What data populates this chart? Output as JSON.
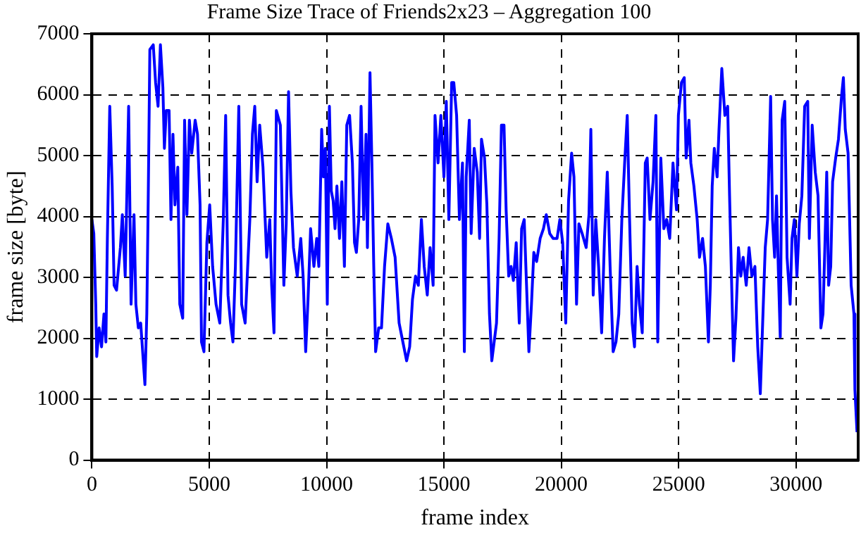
{
  "chart_data": {
    "type": "line",
    "title": "Frame Size Trace of Friends2x23 – Aggregation 100",
    "xlabel": "frame index",
    "ylabel": "frame size [byte]",
    "xlim": [
      0,
      32650
    ],
    "ylim": [
      0,
      7000
    ],
    "xticks": [
      0,
      5000,
      10000,
      15000,
      20000,
      25000,
      30000
    ],
    "yticks": [
      0,
      1000,
      2000,
      3000,
      4000,
      5000,
      6000,
      7000
    ],
    "grid": true,
    "legend": false,
    "marker": "none",
    "line_style": "solid",
    "series": [
      {
        "color": "#0000ff",
        "x": [
          0,
          82,
          165,
          206,
          309,
          412,
          515,
          597,
          660,
          762,
          865,
          947,
          1050,
          1215,
          1298,
          1420,
          1566,
          1670,
          1795,
          1875,
          1980,
          2080,
          2260,
          2340,
          2400,
          2470,
          2615,
          2715,
          2820,
          2920,
          3025,
          3090,
          3170,
          3290,
          3370,
          3455,
          3540,
          3660,
          3745,
          3870,
          3950,
          4050,
          4155,
          4255,
          4400,
          4500,
          4610,
          4670,
          4775,
          4900,
          5020,
          5145,
          5290,
          5450,
          5600,
          5700,
          5800,
          5910,
          6010,
          6115,
          6260,
          6380,
          6530,
          6630,
          6730,
          6840,
          6940,
          7040,
          7150,
          7290,
          7450,
          7580,
          7660,
          7760,
          7860,
          8030,
          8180,
          8280,
          8380,
          8480,
          8590,
          8750,
          8900,
          9000,
          9110,
          9210,
          9320,
          9460,
          9580,
          9670,
          9790,
          9870,
          9950,
          10030,
          10120,
          10200,
          10280,
          10360,
          10440,
          10550,
          10650,
          10760,
          10860,
          10980,
          11100,
          11190,
          11270,
          11370,
          11470,
          11580,
          11680,
          11740,
          11850,
          11930,
          12010,
          12090,
          12220,
          12340,
          12470,
          12610,
          12760,
          12920,
          13090,
          13250,
          13410,
          13540,
          13660,
          13790,
          13910,
          14040,
          14160,
          14290,
          14410,
          14540,
          14620,
          14750,
          14870,
          15000,
          15100,
          15210,
          15330,
          15420,
          15540,
          15660,
          15790,
          15870,
          15950,
          16080,
          16160,
          16290,
          16420,
          16520,
          16600,
          16730,
          16830,
          16940,
          17040,
          17140,
          17240,
          17350,
          17450,
          17560,
          17650,
          17760,
          17860,
          17960,
          18080,
          18210,
          18310,
          18420,
          18520,
          18620,
          18730,
          18830,
          18950,
          19100,
          19240,
          19360,
          19510,
          19650,
          19820,
          19940,
          20060,
          20190,
          20310,
          20440,
          20540,
          20650,
          20750,
          20890,
          21060,
          21180,
          21260,
          21360,
          21470,
          21590,
          21720,
          21840,
          21960,
          22080,
          22210,
          22330,
          22450,
          22580,
          22700,
          22810,
          22910,
          23020,
          23120,
          23230,
          23330,
          23450,
          23580,
          23660,
          23780,
          23910,
          24030,
          24110,
          24240,
          24370,
          24490,
          24620,
          24760,
          24910,
          24990,
          25120,
          25240,
          25320,
          25440,
          25520,
          25650,
          25790,
          25890,
          26020,
          26140,
          26270,
          26350,
          26430,
          26520,
          26640,
          26720,
          26840,
          26970,
          27090,
          27170,
          27260,
          27340,
          27440,
          27550,
          27650,
          27750,
          27880,
          28000,
          28120,
          28250,
          28370,
          28480,
          28580,
          28690,
          28790,
          28920,
          29000,
          29090,
          29170,
          29250,
          29330,
          29410,
          29520,
          29620,
          29750,
          29830,
          29930,
          30040,
          30140,
          30250,
          30370,
          30500,
          30570,
          30690,
          30820,
          30940,
          31060,
          31150,
          31230,
          31310,
          31390,
          31480,
          31560,
          31690,
          31810,
          31940,
          32020,
          32100,
          32220,
          32350,
          32470,
          32510,
          32600
        ],
        "values": [
          3950,
          3720,
          2560,
          1700,
          2170,
          1860,
          2400,
          1940,
          3640,
          5810,
          4500,
          2870,
          2790,
          3490,
          4030,
          3020,
          5810,
          2560,
          4030,
          2560,
          2170,
          2250,
          1240,
          2400,
          4260,
          6740,
          6820,
          6200,
          5810,
          6820,
          6120,
          5120,
          5740,
          5740,
          3950,
          5350,
          4190,
          4810,
          2560,
          2330,
          5580,
          4030,
          5580,
          5040,
          5580,
          5350,
          4190,
          1940,
          1780,
          3570,
          4190,
          3180,
          2560,
          2250,
          3950,
          5660,
          2710,
          2250,
          1940,
          3180,
          5810,
          2560,
          2250,
          3100,
          3950,
          5350,
          5810,
          4570,
          5500,
          4810,
          3330,
          3950,
          2870,
          2090,
          5740,
          5500,
          2870,
          3880,
          6050,
          4420,
          3490,
          3020,
          3640,
          3020,
          1780,
          2640,
          3800,
          3180,
          3640,
          3180,
          5430,
          4650,
          5120,
          2560,
          5810,
          4420,
          4260,
          3800,
          4500,
          3640,
          4570,
          3180,
          5500,
          5660,
          4880,
          3570,
          3410,
          3950,
          5810,
          3950,
          5350,
          3490,
          6360,
          4880,
          3180,
          1780,
          2170,
          2170,
          3180,
          3880,
          3640,
          3330,
          2250,
          1940,
          1630,
          1860,
          2640,
          3020,
          2870,
          3950,
          3180,
          2710,
          3490,
          2870,
          5660,
          4880,
          5660,
          4650,
          5890,
          3950,
          6200,
          6200,
          5660,
          3950,
          4880,
          1780,
          4650,
          5580,
          3720,
          5120,
          4730,
          3640,
          5270,
          4960,
          4190,
          2400,
          1630,
          1940,
          2250,
          3640,
          5500,
          5500,
          4110,
          3020,
          3180,
          2950,
          3570,
          2250,
          3800,
          3950,
          2870,
          1780,
          2560,
          3410,
          3260,
          3640,
          3800,
          4030,
          3720,
          3640,
          3640,
          3950,
          3570,
          2250,
          4260,
          5040,
          4650,
          2560,
          3880,
          3720,
          3490,
          4030,
          5430,
          2710,
          3950,
          3180,
          2090,
          3640,
          4730,
          3180,
          1780,
          1940,
          2400,
          3950,
          4880,
          5660,
          3950,
          2250,
          1860,
          3180,
          2560,
          2090,
          4880,
          4960,
          3950,
          4570,
          5660,
          1940,
          4960,
          3800,
          3950,
          3640,
          4880,
          4110,
          5660,
          6200,
          6280,
          4960,
          5580,
          4880,
          4500,
          3950,
          3330,
          3640,
          3180,
          1940,
          2870,
          4500,
          5120,
          4650,
          5430,
          6430,
          5660,
          5810,
          4340,
          2870,
          1630,
          2330,
          3490,
          3020,
          3330,
          2870,
          3490,
          3020,
          3180,
          1860,
          1090,
          2250,
          3490,
          3950,
          5970,
          3950,
          3330,
          4340,
          3100,
          2020,
          5580,
          5890,
          3330,
          2560,
          3640,
          3950,
          3020,
          3880,
          4340,
          5810,
          5890,
          3640,
          5500,
          4730,
          4340,
          2170,
          2400,
          3490,
          4730,
          2870,
          3180,
          4570,
          4960,
          5270,
          5970,
          6280,
          5430,
          5040,
          2870,
          2400,
          1160,
          460
        ]
      }
    ]
  }
}
